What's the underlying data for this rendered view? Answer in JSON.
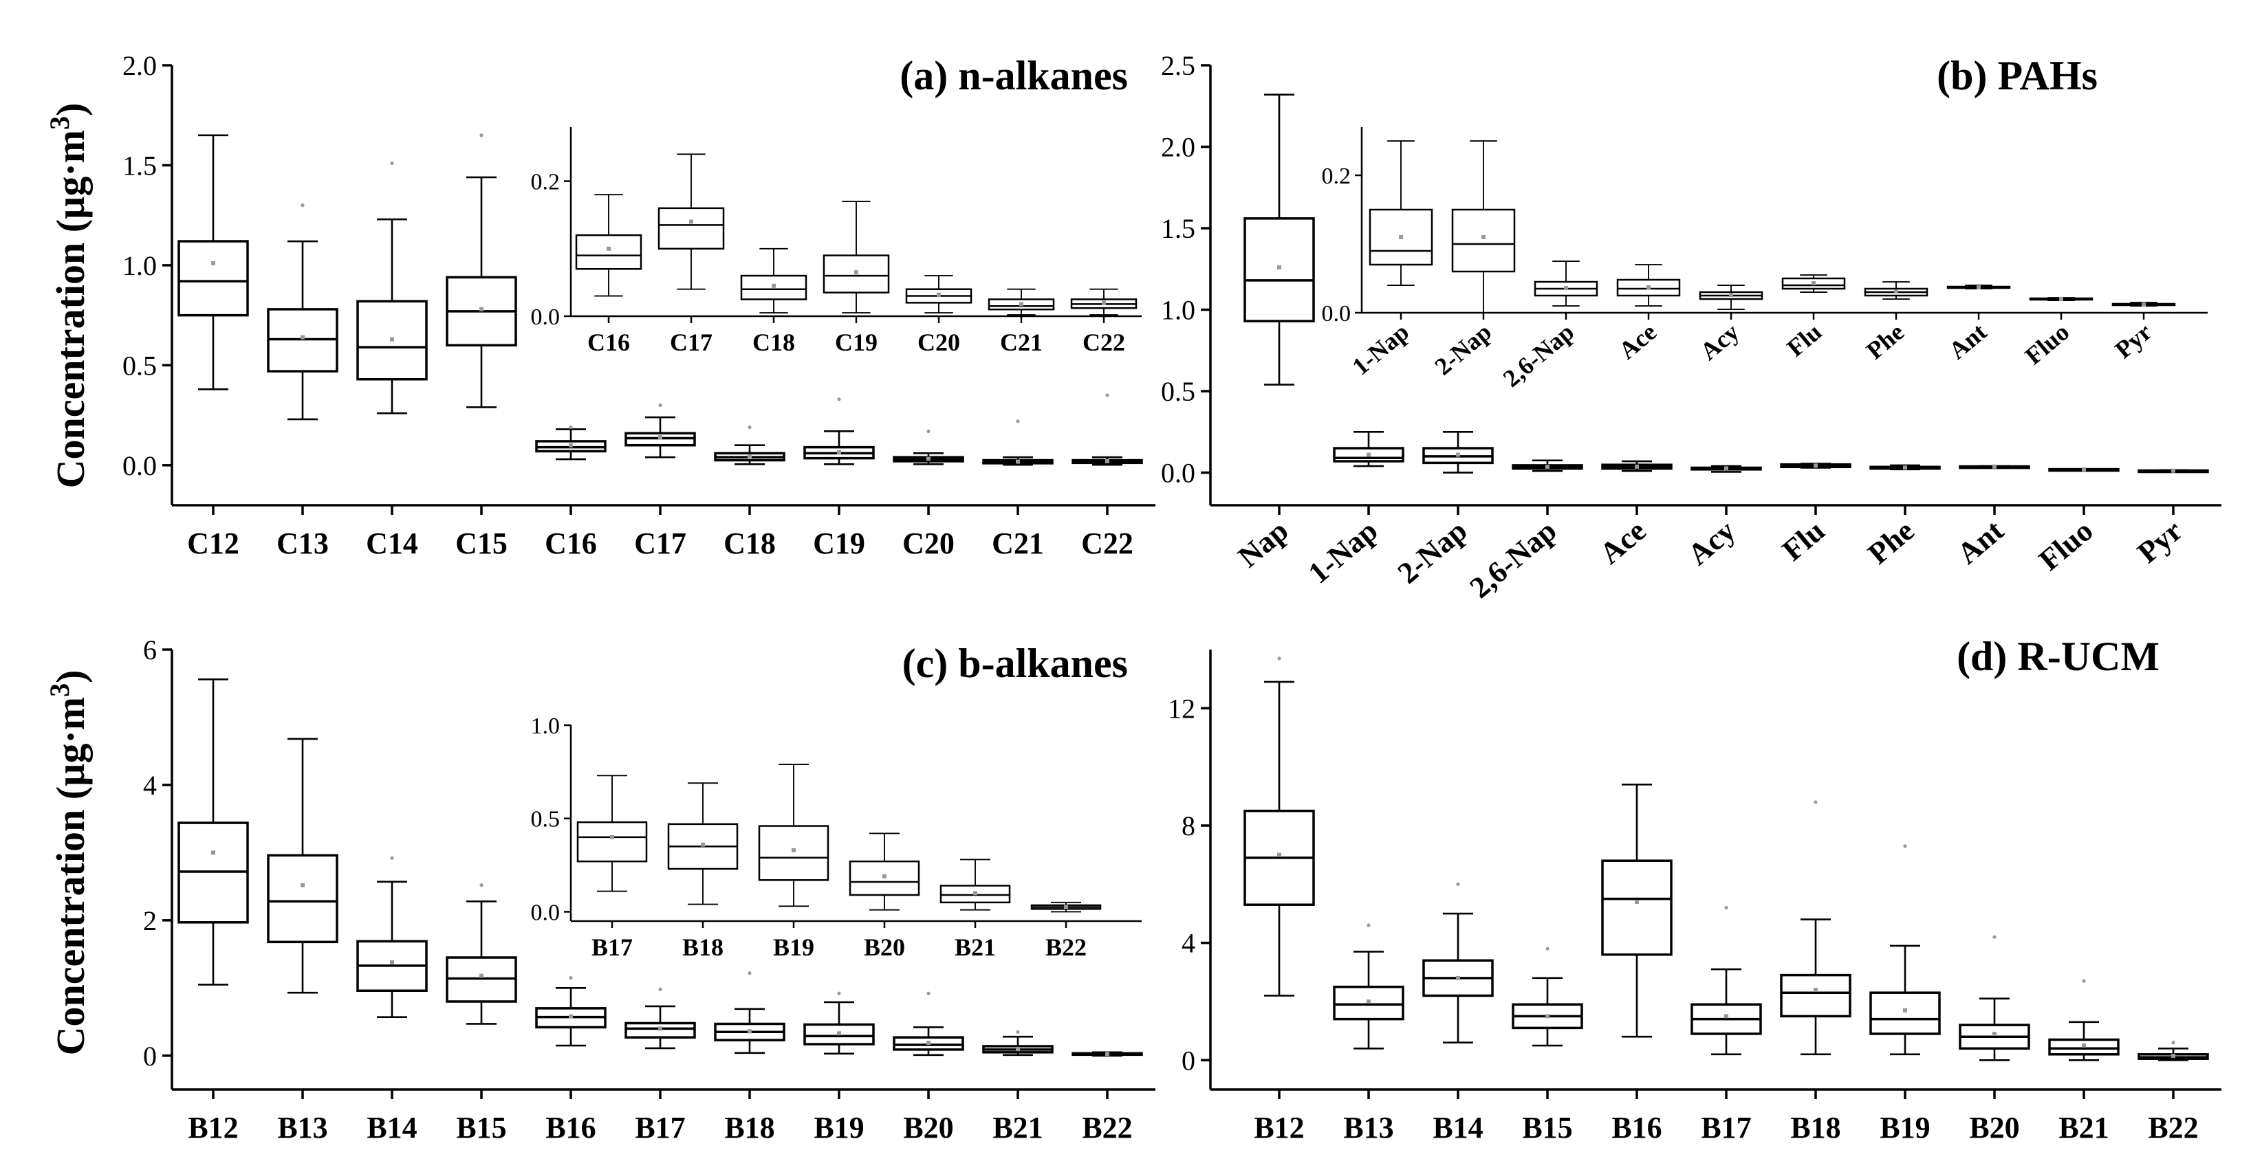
{
  "figure": {
    "ylabel_main": "Concentration (µg·m",
    "ylabel_sup": "3",
    "ylabel_close": ")"
  },
  "chart_data": [
    {
      "id": "a",
      "type": "box",
      "title": "(a) n-alkanes",
      "ylabel": "Concentration (µg·m3)",
      "ylim": [
        -0.2,
        2.0
      ],
      "yticks": [
        "0.0",
        "0.5",
        "1.0",
        "1.5",
        "2.0"
      ],
      "categories": [
        "C12",
        "C13",
        "C14",
        "C15",
        "C16",
        "C17",
        "C18",
        "C19",
        "C20",
        "C21",
        "C22"
      ],
      "boxes": [
        {
          "min": 0.38,
          "q1": 0.75,
          "median": 0.92,
          "q3": 1.12,
          "max": 1.65,
          "mean": 1.01,
          "outlier": null
        },
        {
          "min": 0.23,
          "q1": 0.47,
          "median": 0.63,
          "q3": 0.78,
          "max": 1.12,
          "mean": 0.64,
          "outlier": 1.3
        },
        {
          "min": 0.26,
          "q1": 0.43,
          "median": 0.59,
          "q3": 0.82,
          "max": 1.23,
          "mean": 0.63,
          "outlier": 1.51
        },
        {
          "min": 0.29,
          "q1": 0.6,
          "median": 0.77,
          "q3": 0.94,
          "max": 1.44,
          "mean": 0.78,
          "outlier": 1.65
        },
        {
          "min": 0.03,
          "q1": 0.07,
          "median": 0.09,
          "q3": 0.12,
          "max": 0.18,
          "mean": 0.1,
          "outlier": 0.19
        },
        {
          "min": 0.04,
          "q1": 0.1,
          "median": 0.135,
          "q3": 0.16,
          "max": 0.24,
          "mean": 0.14,
          "outlier": 0.3
        },
        {
          "min": 0.005,
          "q1": 0.025,
          "median": 0.04,
          "q3": 0.06,
          "max": 0.1,
          "mean": 0.045,
          "outlier": 0.19
        },
        {
          "min": 0.005,
          "q1": 0.035,
          "median": 0.06,
          "q3": 0.09,
          "max": 0.17,
          "mean": 0.065,
          "outlier": 0.33
        },
        {
          "min": 0.005,
          "q1": 0.02,
          "median": 0.03,
          "q3": 0.04,
          "max": 0.06,
          "mean": 0.032,
          "outlier": 0.17
        },
        {
          "min": 0.002,
          "q1": 0.01,
          "median": 0.015,
          "q3": 0.025,
          "max": 0.04,
          "mean": 0.018,
          "outlier": 0.22
        },
        {
          "min": 0.002,
          "q1": 0.012,
          "median": 0.018,
          "q3": 0.025,
          "max": 0.04,
          "mean": 0.02,
          "outlier": 0.35
        }
      ],
      "inset": {
        "ylim": [
          0.0,
          0.28
        ],
        "yticks": [
          "0.0",
          "0.2"
        ],
        "categories": [
          "C16",
          "C17",
          "C18",
          "C19",
          "C20",
          "C21",
          "C22"
        ],
        "first_index": 4
      }
    },
    {
      "id": "b",
      "type": "box",
      "title": "(b) PAHs",
      "ylim": [
        -0.2,
        2.5
      ],
      "yticks": [
        "0.0",
        "0.5",
        "1.0",
        "1.5",
        "2.0",
        "2.5"
      ],
      "categories": [
        "Nap",
        "1-Nap",
        "2-Nap",
        "2,6-Nap",
        "Ace",
        "Acy",
        "Flu",
        "Phe",
        "Ant",
        "Fluo",
        "Pyr"
      ],
      "boxes": [
        {
          "min": 0.54,
          "q1": 0.93,
          "median": 1.18,
          "q3": 1.56,
          "max": 2.32,
          "mean": 1.26,
          "outlier": null
        },
        {
          "min": 0.04,
          "q1": 0.07,
          "median": 0.09,
          "q3": 0.15,
          "max": 0.25,
          "mean": 0.11,
          "outlier": null
        },
        {
          "min": 0.0,
          "q1": 0.06,
          "median": 0.1,
          "q3": 0.15,
          "max": 0.25,
          "mean": 0.11,
          "outlier": null
        },
        {
          "min": 0.01,
          "q1": 0.025,
          "median": 0.035,
          "q3": 0.045,
          "max": 0.075,
          "mean": 0.036,
          "outlier": null
        },
        {
          "min": 0.01,
          "q1": 0.025,
          "median": 0.035,
          "q3": 0.048,
          "max": 0.07,
          "mean": 0.037,
          "outlier": null
        },
        {
          "min": 0.005,
          "q1": 0.02,
          "median": 0.025,
          "q3": 0.03,
          "max": 0.04,
          "mean": 0.026,
          "outlier": null
        },
        {
          "min": 0.03,
          "q1": 0.035,
          "median": 0.04,
          "q3": 0.05,
          "max": 0.055,
          "mean": 0.043,
          "outlier": null
        },
        {
          "min": 0.02,
          "q1": 0.025,
          "median": 0.03,
          "q3": 0.035,
          "max": 0.045,
          "mean": 0.031,
          "outlier": null
        },
        {
          "min": 0.035,
          "q1": 0.036,
          "median": 0.037,
          "q3": 0.038,
          "max": 0.04,
          "mean": 0.037,
          "outlier": null
        },
        {
          "min": 0.018,
          "q1": 0.019,
          "median": 0.02,
          "q3": 0.021,
          "max": 0.022,
          "mean": 0.02,
          "outlier": null
        },
        {
          "min": 0.01,
          "q1": 0.011,
          "median": 0.012,
          "q3": 0.013,
          "max": 0.015,
          "mean": 0.012,
          "outlier": null
        }
      ],
      "inset": {
        "ylim": [
          0.0,
          0.27
        ],
        "yticks": [
          "0.0",
          "0.2"
        ],
        "categories": [
          "1-Nap",
          "2-Nap",
          "2,6-Nap",
          "Ace",
          "Acy",
          "Flu",
          "Phe",
          "Ant",
          "Fluo",
          "Pyr"
        ],
        "first_index": 1
      }
    },
    {
      "id": "c",
      "type": "box",
      "title": "(c) b-alkanes",
      "ylabel": "Concentration (µg·m3)",
      "ylim": [
        -0.5,
        6.0
      ],
      "yticks": [
        "0",
        "2",
        "4",
        "6"
      ],
      "categories": [
        "B12",
        "B13",
        "B14",
        "B15",
        "B16",
        "B17",
        "B18",
        "B19",
        "B20",
        "B21",
        "B22"
      ],
      "boxes": [
        {
          "min": 1.05,
          "q1": 1.97,
          "median": 2.72,
          "q3": 3.44,
          "max": 5.56,
          "mean": 3.0,
          "outlier": null
        },
        {
          "min": 0.93,
          "q1": 1.68,
          "median": 2.28,
          "q3": 2.96,
          "max": 4.68,
          "mean": 2.52,
          "outlier": null
        },
        {
          "min": 0.57,
          "q1": 0.96,
          "median": 1.33,
          "q3": 1.69,
          "max": 2.57,
          "mean": 1.38,
          "outlier": 2.92
        },
        {
          "min": 0.47,
          "q1": 0.8,
          "median": 1.14,
          "q3": 1.45,
          "max": 2.28,
          "mean": 1.18,
          "outlier": 2.52
        },
        {
          "min": 0.15,
          "q1": 0.42,
          "median": 0.57,
          "q3": 0.7,
          "max": 1.0,
          "mean": 0.58,
          "outlier": 1.15
        },
        {
          "min": 0.11,
          "q1": 0.27,
          "median": 0.4,
          "q3": 0.48,
          "max": 0.73,
          "mean": 0.4,
          "outlier": 0.98
        },
        {
          "min": 0.04,
          "q1": 0.23,
          "median": 0.35,
          "q3": 0.47,
          "max": 0.69,
          "mean": 0.36,
          "outlier": 1.22
        },
        {
          "min": 0.03,
          "q1": 0.17,
          "median": 0.29,
          "q3": 0.46,
          "max": 0.79,
          "mean": 0.33,
          "outlier": 0.92
        },
        {
          "min": 0.01,
          "q1": 0.09,
          "median": 0.16,
          "q3": 0.27,
          "max": 0.42,
          "mean": 0.19,
          "outlier": 0.92
        },
        {
          "min": 0.01,
          "q1": 0.05,
          "median": 0.09,
          "q3": 0.14,
          "max": 0.28,
          "mean": 0.1,
          "outlier": 0.35
        },
        {
          "min": 0.0,
          "q1": 0.015,
          "median": 0.025,
          "q3": 0.035,
          "max": 0.05,
          "mean": 0.026,
          "outlier": null
        }
      ],
      "inset": {
        "ylim": [
          -0.05,
          1.0
        ],
        "yticks": [
          "0.0",
          "0.5",
          "1.0"
        ],
        "categories": [
          "B17",
          "B18",
          "B19",
          "B20",
          "B21",
          "B22"
        ],
        "first_index": 5
      }
    },
    {
      "id": "d",
      "type": "box",
      "title": "(d) R-UCM",
      "ylim": [
        -1.0,
        14.0
      ],
      "yticks": [
        "0",
        "4",
        "8",
        "12"
      ],
      "categories": [
        "B12",
        "B13",
        "B14",
        "B15",
        "B16",
        "B17",
        "B18",
        "B19",
        "B20",
        "B21",
        "B22"
      ],
      "boxes": [
        {
          "min": 2.2,
          "q1": 5.3,
          "median": 6.9,
          "q3": 8.5,
          "max": 12.9,
          "mean": 7.0,
          "outlier": 13.7
        },
        {
          "min": 0.4,
          "q1": 1.4,
          "median": 1.9,
          "q3": 2.5,
          "max": 3.7,
          "mean": 2.0,
          "outlier": 4.6
        },
        {
          "min": 0.6,
          "q1": 2.2,
          "median": 2.8,
          "q3": 3.4,
          "max": 5.0,
          "mean": 2.8,
          "outlier": 6.0
        },
        {
          "min": 0.5,
          "q1": 1.1,
          "median": 1.5,
          "q3": 1.9,
          "max": 2.8,
          "mean": 1.5,
          "outlier": 3.8
        },
        {
          "min": 0.8,
          "q1": 3.6,
          "median": 5.5,
          "q3": 6.8,
          "max": 9.4,
          "mean": 5.4,
          "outlier": null
        },
        {
          "min": 0.2,
          "q1": 0.9,
          "median": 1.4,
          "q3": 1.9,
          "max": 3.1,
          "mean": 1.5,
          "outlier": 5.2
        },
        {
          "min": 0.2,
          "q1": 1.5,
          "median": 2.3,
          "q3": 2.9,
          "max": 4.8,
          "mean": 2.4,
          "outlier": 8.8
        },
        {
          "min": 0.2,
          "q1": 0.9,
          "median": 1.4,
          "q3": 2.3,
          "max": 3.9,
          "mean": 1.7,
          "outlier": 7.3
        },
        {
          "min": 0.0,
          "q1": 0.4,
          "median": 0.8,
          "q3": 1.2,
          "max": 2.1,
          "mean": 0.9,
          "outlier": 4.2
        },
        {
          "min": 0.0,
          "q1": 0.2,
          "median": 0.4,
          "q3": 0.7,
          "max": 1.3,
          "mean": 0.5,
          "outlier": 2.7
        },
        {
          "min": 0.0,
          "q1": 0.05,
          "median": 0.1,
          "q3": 0.2,
          "max": 0.4,
          "mean": 0.15,
          "outlier": 0.6
        }
      ]
    }
  ]
}
